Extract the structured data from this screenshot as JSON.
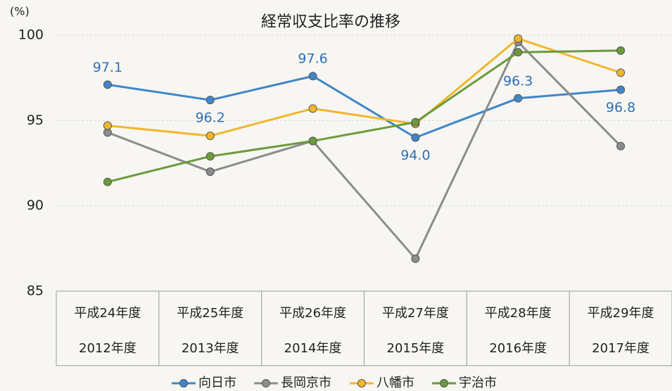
{
  "chart_data": {
    "type": "line",
    "title": "経常収支比率の推移",
    "y_label": "(%)",
    "categories": [
      [
        "平成24年度",
        "2012年度"
      ],
      [
        "平成25年度",
        "2013年度"
      ],
      [
        "平成26年度",
        "2014年度"
      ],
      [
        "平成27年度",
        "2015年度"
      ],
      [
        "平成28年度",
        "2016年度"
      ],
      [
        "平成29年度",
        "2017年度"
      ]
    ],
    "series": [
      {
        "name": "向日市",
        "color": "#3f86c9",
        "values": [
          97.1,
          96.2,
          97.6,
          94.0,
          96.3,
          96.8
        ],
        "value_labels": [
          "97.1",
          "96.2",
          "97.6",
          "94.0",
          "96.3",
          "96.8"
        ]
      },
      {
        "name": "長岡京市",
        "color": "#8c8c8c",
        "values": [
          94.3,
          92.0,
          93.8,
          86.9,
          99.6,
          93.5
        ]
      },
      {
        "name": "八幡市",
        "color": "#f2b62c",
        "values": [
          94.7,
          94.1,
          95.7,
          94.8,
          99.8,
          97.8
        ]
      },
      {
        "name": "宇治市",
        "color": "#6b9a3b",
        "values": [
          91.4,
          92.9,
          93.8,
          94.9,
          99.0,
          99.1
        ]
      }
    ],
    "ylim": [
      85,
      100
    ],
    "yticks": [
      85,
      90,
      95,
      100
    ],
    "grid": true
  }
}
